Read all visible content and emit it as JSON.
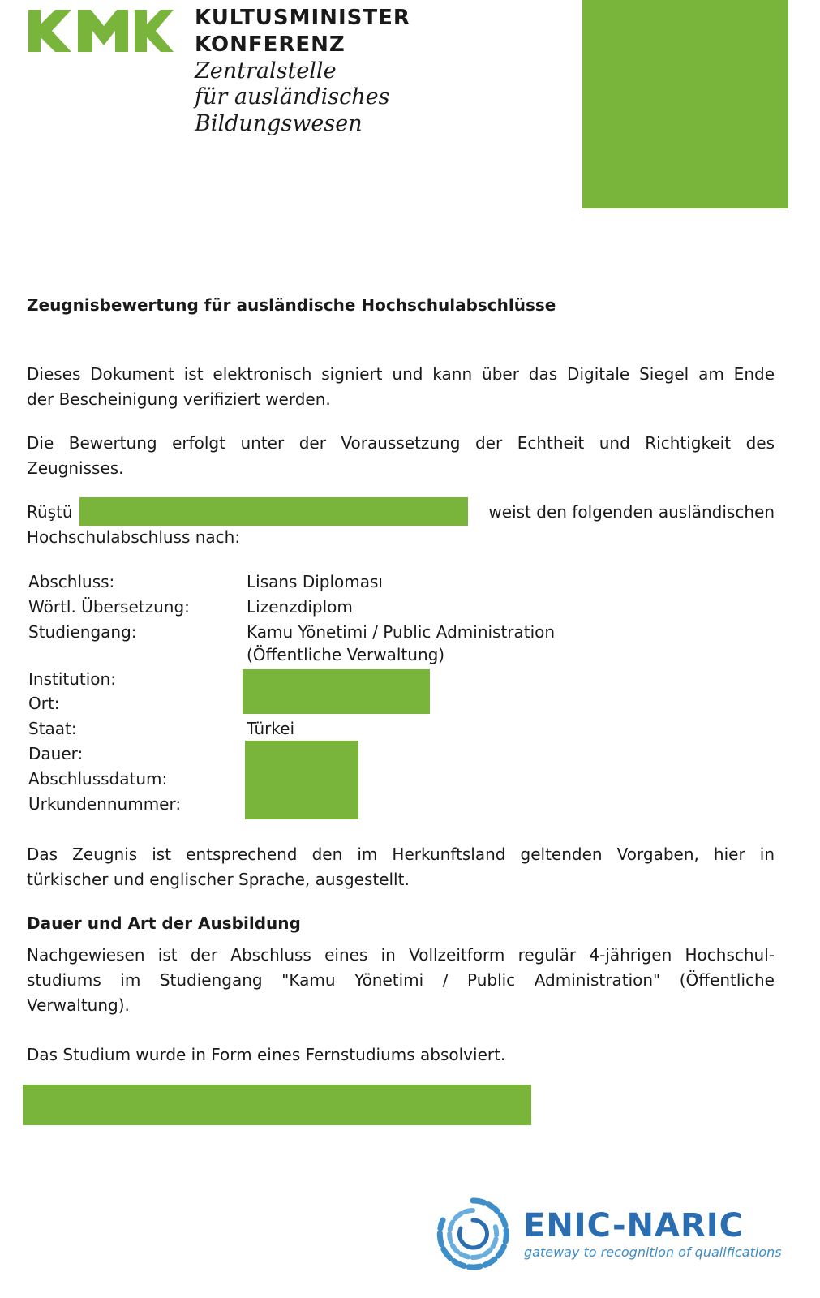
{
  "header": {
    "org_lines": [
      "KULTUSMINISTER",
      "KONFERENZ"
    ],
    "sub_lines": [
      "Zentralstelle",
      "für ausländisches",
      "Bildungswesen"
    ]
  },
  "title": "Zeugnisbewertung für ausländische Hochschulabschlüsse",
  "intro_paragraphs": [
    {
      "lines": [
        "Dieses Dokument ist elektronisch signiert und kann über das Digitale Siegel am Ende",
        "der Bescheinigung verifiziert werden."
      ]
    },
    {
      "lines": [
        "Die Bewertung erfolgt unter der Voraussetzung der Echtheit und Richtigkeit des",
        "Zeugnisses."
      ]
    }
  ],
  "holder": {
    "name": "Rüştü",
    "rest_line1": "weist den folgenden ausländischen",
    "rest_line2": "Hochschulabschluss nach:"
  },
  "details": [
    {
      "label": "Abschluss:",
      "value_lines": [
        "Lisans Diploması"
      ]
    },
    {
      "label": "Wörtl. Übersetzung:",
      "value_lines": [
        "Lizenzdiplom"
      ]
    },
    {
      "label": "Studiengang:",
      "value_lines": [
        "Kamu Yönetimi / Public Administration",
        "(Öffentliche Verwaltung)"
      ]
    },
    {
      "label": "Institution:"
    },
    {
      "label": "Ort:"
    },
    {
      "label": "Staat:",
      "value_lines": [
        "Türkei"
      ]
    },
    {
      "label": "Dauer:"
    },
    {
      "label": "Abschlussdatum:"
    },
    {
      "label": "Urkundennummer:"
    }
  ],
  "issue_paragraph": {
    "lines": [
      "Das Zeugnis ist entsprechend den im Herkunftsland geltenden Vorgaben, hier in",
      "türkischer und englischer Sprache, ausgestellt."
    ]
  },
  "section": {
    "heading": "Dauer und Art der Ausbildung",
    "paragraphs": [
      {
        "lines": [
          "Nachgewiesen ist der Abschluss eines in Vollzeitform regulär 4-jährigen Hochschul-",
          "studiums im Studiengang \"Kamu Yönetimi / Public Administration\" (Öffentliche",
          "Verwaltung)."
        ]
      },
      {
        "lines": [
          "Das Studium wurde in Form eines Fernstudiums absolviert."
        ]
      }
    ]
  },
  "footer_logo": {
    "name": "ENIC-NARIC",
    "tagline": "gateway to recognition of qualifications"
  }
}
